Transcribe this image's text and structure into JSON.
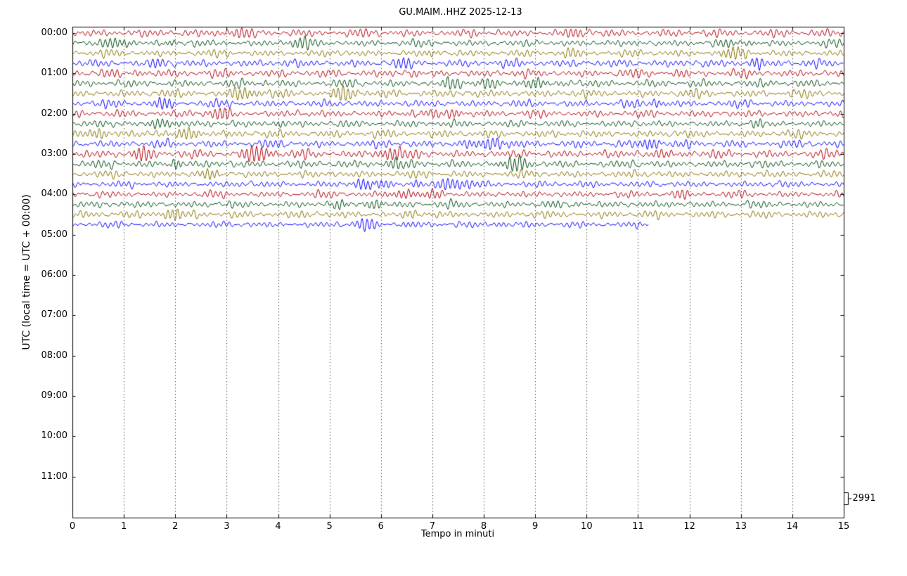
{
  "chart_data": {
    "type": "line",
    "subtype": "helicorder-dayplot",
    "title": "GU.MAIM..HHZ 2025-12-13",
    "xlabel": "Tempo in minuti",
    "ylabel": "UTC (local time = UTC + 00:00)",
    "xlim": [
      0,
      15
    ],
    "x_ticks": [
      "0",
      "1",
      "2",
      "3",
      "4",
      "5",
      "6",
      "7",
      "8",
      "9",
      "10",
      "11",
      "12",
      "13",
      "14",
      "15"
    ],
    "y_ticks": [
      "00:00",
      "01:00",
      "02:00",
      "03:00",
      "04:00",
      "05:00",
      "06:00",
      "07:00",
      "08:00",
      "09:00",
      "10:00",
      "11:00"
    ],
    "hours_shown": 12,
    "lines_per_hour": 4,
    "minutes_per_line": 15,
    "grid": {
      "vertical_dotted": true,
      "interval_minutes": 1
    },
    "legend_position": "none",
    "scale_label": "2991",
    "trace_colors": [
      "#b2000f",
      "#004c12",
      "#847200",
      "#0e01ff"
    ],
    "traces": [
      {
        "start": "00:00",
        "color": "#b2000f",
        "end_minute": 15,
        "amp": 1.1,
        "seed": 1
      },
      {
        "start": "00:15",
        "color": "#004c12",
        "end_minute": 15,
        "amp": 0.95,
        "seed": 2
      },
      {
        "start": "00:30",
        "color": "#847200",
        "end_minute": 15,
        "amp": 0.95,
        "seed": 3
      },
      {
        "start": "00:45",
        "color": "#0e01ff",
        "end_minute": 15,
        "amp": 1.1,
        "seed": 4
      },
      {
        "start": "01:00",
        "color": "#b2000f",
        "end_minute": 15,
        "amp": 1.1,
        "seed": 5
      },
      {
        "start": "01:15",
        "color": "#004c12",
        "end_minute": 15,
        "amp": 1.05,
        "seed": 6
      },
      {
        "start": "01:30",
        "color": "#847200",
        "end_minute": 15,
        "amp": 1.1,
        "seed": 7
      },
      {
        "start": "01:45",
        "color": "#0e01ff",
        "end_minute": 15,
        "amp": 1.0,
        "seed": 8
      },
      {
        "start": "02:00",
        "color": "#b2000f",
        "end_minute": 15,
        "amp": 1.0,
        "seed": 9
      },
      {
        "start": "02:15",
        "color": "#004c12",
        "end_minute": 15,
        "amp": 0.95,
        "seed": 10
      },
      {
        "start": "02:30",
        "color": "#847200",
        "end_minute": 15,
        "amp": 1.05,
        "seed": 11
      },
      {
        "start": "02:45",
        "color": "#0e01ff",
        "end_minute": 15,
        "amp": 1.05,
        "seed": 12
      },
      {
        "start": "03:00",
        "color": "#b2000f",
        "end_minute": 15,
        "amp": 1.15,
        "seed": 13
      },
      {
        "start": "03:15",
        "color": "#004c12",
        "end_minute": 15,
        "amp": 1.1,
        "seed": 14
      },
      {
        "start": "03:30",
        "color": "#847200",
        "end_minute": 15,
        "amp": 1.0,
        "seed": 15
      },
      {
        "start": "03:45",
        "color": "#0e01ff",
        "end_minute": 15,
        "amp": 0.9,
        "seed": 16
      },
      {
        "start": "04:00",
        "color": "#b2000f",
        "end_minute": 15,
        "amp": 0.9,
        "seed": 17
      },
      {
        "start": "04:15",
        "color": "#004c12",
        "end_minute": 15,
        "amp": 1.0,
        "seed": 18
      },
      {
        "start": "04:30",
        "color": "#847200",
        "end_minute": 15,
        "amp": 1.0,
        "seed": 19
      },
      {
        "start": "04:45",
        "color": "#0e01ff",
        "end_minute": 11.2,
        "amp": 0.85,
        "seed": 20
      }
    ]
  }
}
